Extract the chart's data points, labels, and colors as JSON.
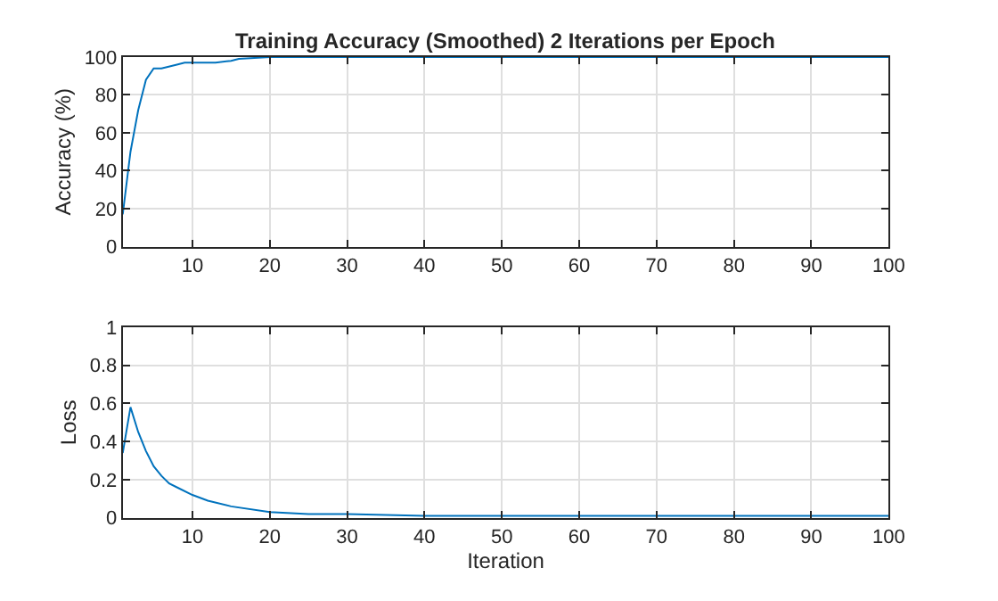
{
  "chart_data": [
    {
      "type": "line",
      "title": "Training Accuracy (Smoothed) 2 Iterations per Epoch",
      "ylabel": "Accuracy (%)",
      "x": [
        1,
        2,
        3,
        4,
        5,
        6,
        8,
        9,
        13,
        15,
        16,
        20,
        100
      ],
      "series": [
        {
          "color": "#0072bd",
          "values": [
            17,
            50,
            72,
            88,
            94,
            94,
            96,
            97,
            97,
            98,
            99,
            100,
            100
          ]
        }
      ],
      "xlim": [
        1,
        100
      ],
      "xticks": [
        10,
        20,
        30,
        40,
        50,
        60,
        70,
        80,
        90,
        100
      ],
      "ylim": [
        0,
        100
      ],
      "yticks": [
        0,
        20,
        40,
        60,
        80,
        100
      ],
      "grid": true
    },
    {
      "type": "line",
      "xlabel": "Iteration",
      "ylabel": "Loss",
      "x": [
        1,
        2,
        3,
        4,
        5,
        6,
        7,
        8,
        10,
        12,
        15,
        20,
        25,
        30,
        40,
        60,
        100
      ],
      "series": [
        {
          "color": "#0072bd",
          "values": [
            0.34,
            0.58,
            0.45,
            0.35,
            0.27,
            0.22,
            0.18,
            0.16,
            0.12,
            0.09,
            0.06,
            0.03,
            0.02,
            0.02,
            0.01,
            0.01,
            0.01
          ]
        }
      ],
      "xlim": [
        1,
        100
      ],
      "xticks": [
        10,
        20,
        30,
        40,
        50,
        60,
        70,
        80,
        90,
        100
      ],
      "ylim": [
        0,
        1
      ],
      "yticks": [
        0,
        0.2,
        0.4,
        0.6,
        0.8,
        1
      ],
      "grid": true
    }
  ]
}
